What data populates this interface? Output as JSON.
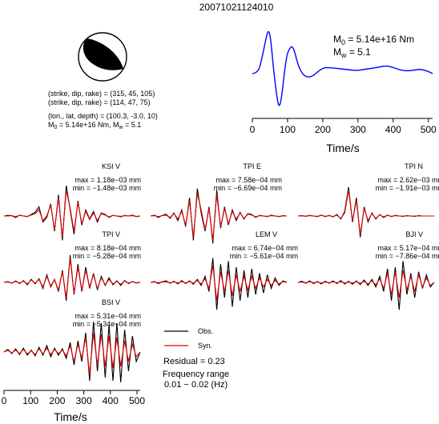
{
  "title": "20071021124010",
  "mechanism": {
    "lines": [
      "(strike, dip, rake) = (315, 45, 105)",
      "(strike, dip, rake) = (114, 47, 75)",
      "(lon., lat, depth) = (100.3, -3.0, 10)"
    ],
    "m0_prefix": "M",
    "m0_sub": "0",
    "m0_value": " = 5.14e+16 Nm, M",
    "mw_sub": "w",
    "mw_value": " = 5.1"
  },
  "stf_labels": {
    "m0_prefix": "M",
    "m0_sub": "0",
    "m0_value": " = 5.14e+16 Nm",
    "mw_prefix": "M",
    "mw_sub": "w",
    "mw_value": " = 5.1"
  },
  "legend": {
    "obs": "Obs.",
    "syn": "Syn.",
    "residual": "Residual = 0.23",
    "freq_title": "Frequency range",
    "freq_value": "0.01 − 0.02 (Hz)"
  },
  "colors": {
    "obs": "#000000",
    "syn": "#e00000",
    "stf": "#0000ff"
  },
  "chart_data": [
    {
      "type": "line",
      "name": "source-time-function",
      "xlabel": "Time/s",
      "xlim": [
        0,
        512
      ],
      "xticks": [
        0,
        100,
        200,
        300,
        400,
        500
      ],
      "x": [
        0,
        10,
        20,
        30,
        40,
        45,
        50,
        55,
        60,
        70,
        75,
        80,
        85,
        90,
        95,
        100,
        110,
        115,
        120,
        125,
        130,
        140,
        150,
        160,
        170,
        180,
        190,
        200,
        210,
        220,
        240,
        260,
        280,
        300,
        320,
        340,
        360,
        380,
        400,
        420,
        440,
        460,
        480,
        500,
        512
      ],
      "values": [
        0.0,
        0.02,
        0.1,
        0.45,
        0.85,
        0.98,
        0.9,
        0.55,
        0.1,
        -0.55,
        -0.75,
        -0.68,
        -0.4,
        -0.05,
        0.25,
        0.48,
        0.62,
        0.6,
        0.5,
        0.35,
        0.2,
        0.02,
        -0.06,
        -0.08,
        -0.06,
        0.0,
        0.07,
        0.12,
        0.14,
        0.13,
        0.12,
        0.1,
        0.08,
        0.07,
        0.1,
        0.12,
        0.15,
        0.18,
        0.14,
        0.08,
        0.06,
        0.08,
        0.1,
        0.05,
        0.0
      ]
    },
    {
      "type": "line",
      "name": "KSI V",
      "station": "KSI V",
      "max": "max = 1.18e−03 mm",
      "min": "min = −1.48e−03 mm",
      "obs": [
        0,
        0.02,
        0.01,
        -0.05,
        0.03,
        0.0,
        -0.02,
        0.05,
        0.12,
        0.3,
        -0.2,
        -0.05,
        0.4,
        -0.5,
        0.7,
        -0.8,
        1.0,
        0.2,
        -0.6,
        0.5,
        -0.3,
        0.2,
        -0.1,
        0.15,
        -0.2,
        0.1,
        0.05,
        -0.05,
        0.02,
        0.0,
        -0.03,
        0.02,
        0.0,
        0.03,
        -0.02,
        0.0
      ],
      "syn": [
        0,
        0.0,
        0.01,
        -0.02,
        0.02,
        0.0,
        -0.01,
        0.03,
        0.08,
        0.2,
        -0.15,
        0.0,
        0.35,
        -0.45,
        0.6,
        -0.7,
        0.85,
        0.25,
        -0.5,
        0.45,
        -0.25,
        0.15,
        -0.12,
        0.1,
        -0.15,
        0.08,
        0.03,
        -0.03,
        0.02,
        0.0,
        -0.01,
        0.01,
        0.0,
        0.01,
        -0.01,
        0.0
      ]
    },
    {
      "type": "line",
      "name": "TPI E",
      "station": "TPI E",
      "max": "max = 7.58e−04 mm",
      "min": "min = −6.69e−04 mm",
      "obs": [
        0,
        0.03,
        -0.05,
        0.02,
        0.06,
        -0.08,
        0.1,
        -0.15,
        0.2,
        -0.35,
        0.6,
        -0.8,
        0.9,
        0.1,
        -0.5,
        0.3,
        -0.9,
        0.85,
        -0.4,
        0.3,
        -0.3,
        0.2,
        -0.15,
        0.12,
        -0.1,
        0.08,
        0.05,
        -0.05,
        0.02,
        0.0,
        -0.02,
        0.03,
        0.0,
        -0.02,
        0.01,
        0.0
      ],
      "syn": [
        0,
        0.01,
        -0.02,
        0.01,
        0.03,
        -0.05,
        0.08,
        -0.1,
        0.15,
        -0.3,
        0.5,
        -0.7,
        0.75,
        0.2,
        -0.45,
        0.25,
        -0.8,
        0.7,
        -0.35,
        0.25,
        -0.25,
        0.15,
        -0.1,
        0.1,
        -0.08,
        0.06,
        0.03,
        -0.03,
        0.01,
        0.0,
        -0.01,
        0.01,
        0.0,
        -0.01,
        0.0,
        0.0
      ]
    },
    {
      "type": "line",
      "name": "TPI N",
      "station": "TPI N",
      "max": "max = 2.62e−03 mm",
      "min": "min = −1.91e−03 mm",
      "obs": [
        0,
        0.01,
        -0.01,
        0.02,
        0.0,
        -0.02,
        0.03,
        -0.02,
        0.02,
        -0.03,
        0.05,
        -0.1,
        0.15,
        0.95,
        -0.2,
        0.6,
        -0.7,
        0.3,
        -0.2,
        0.1,
        -0.1,
        0.05,
        -0.05,
        0.03,
        -0.02,
        0.02,
        0.0,
        -0.01,
        0.01,
        0.0,
        -0.01,
        0.01,
        0.0,
        0.0,
        0.0,
        0.0
      ],
      "syn": [
        0,
        0.0,
        0.0,
        0.01,
        0.0,
        -0.01,
        0.02,
        -0.01,
        0.01,
        -0.02,
        0.03,
        -0.08,
        0.1,
        0.85,
        -0.15,
        0.5,
        -0.6,
        0.25,
        -0.15,
        0.08,
        -0.08,
        0.04,
        -0.03,
        0.02,
        -0.01,
        0.01,
        0.0,
        0.0,
        0.0,
        0.0,
        0.0,
        0.0,
        0.0,
        0.0,
        0.0,
        0.0
      ]
    },
    {
      "type": "line",
      "name": "TPI V",
      "station": "TPI V",
      "max": "max = 8.18e−04 mm",
      "min": "min = −5.28e−04 mm",
      "obs": [
        0,
        0.03,
        -0.03,
        0.05,
        -0.04,
        0.06,
        -0.08,
        0.1,
        -0.05,
        0.12,
        -0.2,
        0.25,
        -0.15,
        0.1,
        -0.3,
        0.4,
        -0.6,
        0.9,
        -0.4,
        0.6,
        -0.3,
        0.5,
        -0.2,
        0.3,
        -0.25,
        0.2,
        -0.1,
        0.15,
        -0.08,
        0.05,
        -0.1,
        0.06,
        -0.04,
        0.03,
        -0.02,
        0.0
      ],
      "syn": [
        0,
        0.01,
        -0.02,
        0.03,
        -0.02,
        0.04,
        -0.05,
        0.08,
        -0.03,
        0.1,
        -0.15,
        0.2,
        -0.12,
        0.08,
        -0.25,
        0.35,
        -0.5,
        0.8,
        -0.35,
        0.5,
        -0.25,
        0.4,
        -0.15,
        0.25,
        -0.2,
        0.15,
        -0.08,
        0.1,
        -0.05,
        0.03,
        -0.06,
        0.04,
        -0.02,
        0.02,
        -0.01,
        0.0
      ]
    },
    {
      "type": "line",
      "name": "LEM V",
      "station": "LEM V",
      "max": "max = 6.74e−04 mm",
      "min": "min = −5.61e−04 mm",
      "obs": [
        0,
        0.03,
        -0.04,
        0.02,
        0.05,
        -0.03,
        0.04,
        -0.05,
        0.06,
        -0.04,
        0.05,
        -0.06,
        0.1,
        -0.1,
        0.2,
        -0.3,
        0.8,
        -0.9,
        0.6,
        -0.5,
        0.7,
        -0.8,
        0.5,
        -0.6,
        0.4,
        -0.5,
        0.45,
        -0.4,
        0.3,
        -0.35,
        0.25,
        -0.2,
        0.15,
        -0.1,
        0.05,
        0.0
      ],
      "syn": [
        0,
        0.01,
        -0.01,
        0.01,
        0.02,
        -0.01,
        0.02,
        -0.02,
        0.03,
        -0.02,
        0.03,
        -0.03,
        0.06,
        -0.05,
        0.12,
        -0.2,
        0.55,
        -0.6,
        0.35,
        -0.3,
        0.4,
        -0.45,
        0.25,
        -0.3,
        0.2,
        -0.25,
        0.2,
        -0.2,
        0.15,
        -0.15,
        0.1,
        -0.1,
        0.06,
        -0.05,
        0.02,
        0.0
      ]
    },
    {
      "type": "line",
      "name": "BJI V",
      "station": "BJI V",
      "max": "max = 5.17e−04 mm",
      "min": "min = −7.86e−04 mm",
      "obs": [
        0,
        0.04,
        -0.03,
        0.05,
        -0.04,
        0.03,
        -0.05,
        0.04,
        -0.03,
        0.05,
        -0.04,
        0.06,
        -0.05,
        0.04,
        -0.06,
        0.05,
        -0.07,
        0.08,
        -0.1,
        0.1,
        -0.15,
        0.2,
        -0.3,
        0.45,
        -0.6,
        0.5,
        -0.9,
        0.7,
        -0.4,
        0.3,
        -0.5,
        0.35,
        -0.2,
        0.25,
        -0.15,
        0.0
      ],
      "syn": [
        0,
        0.01,
        -0.01,
        0.02,
        -0.01,
        0.01,
        -0.02,
        0.01,
        -0.01,
        0.02,
        -0.01,
        0.02,
        -0.02,
        0.01,
        -0.02,
        0.02,
        -0.03,
        0.03,
        -0.05,
        0.05,
        -0.08,
        0.12,
        -0.2,
        0.3,
        -0.4,
        0.35,
        -0.5,
        0.4,
        -0.25,
        0.2,
        -0.3,
        0.25,
        -0.15,
        0.15,
        -0.1,
        0.0
      ]
    },
    {
      "type": "line",
      "name": "BSI V",
      "station": "BSI V",
      "max": "max = 5.31e−04 mm",
      "min": "min = −5.34e−04 mm",
      "obs": [
        0,
        0.08,
        -0.05,
        0.1,
        -0.08,
        0.12,
        -0.1,
        0.06,
        -0.12,
        0.15,
        -0.1,
        0.2,
        -0.15,
        0.12,
        -0.1,
        0.1,
        -0.2,
        0.3,
        -0.4,
        0.35,
        -0.3,
        0.6,
        -0.9,
        0.95,
        -0.6,
        0.9,
        -0.8,
        0.85,
        -0.9,
        0.9,
        -0.95,
        0.7,
        -0.6,
        0.5,
        -0.3,
        0.0
      ],
      "syn": [
        0,
        0.05,
        -0.03,
        0.06,
        -0.05,
        0.08,
        -0.06,
        0.04,
        -0.08,
        0.1,
        -0.06,
        0.12,
        -0.08,
        0.08,
        -0.05,
        0.06,
        -0.12,
        0.2,
        -0.3,
        0.25,
        -0.2,
        0.45,
        -0.7,
        0.6,
        -0.4,
        0.55,
        -0.45,
        0.5,
        -0.5,
        0.45,
        -0.45,
        0.35,
        -0.3,
        0.25,
        -0.15,
        0.0
      ]
    },
    {
      "type": "axis",
      "name": "waveform-time-axis",
      "xlabel": "Time/s",
      "xlim": [
        0,
        512
      ],
      "xticks": [
        0,
        100,
        200,
        300,
        400,
        500
      ]
    }
  ]
}
